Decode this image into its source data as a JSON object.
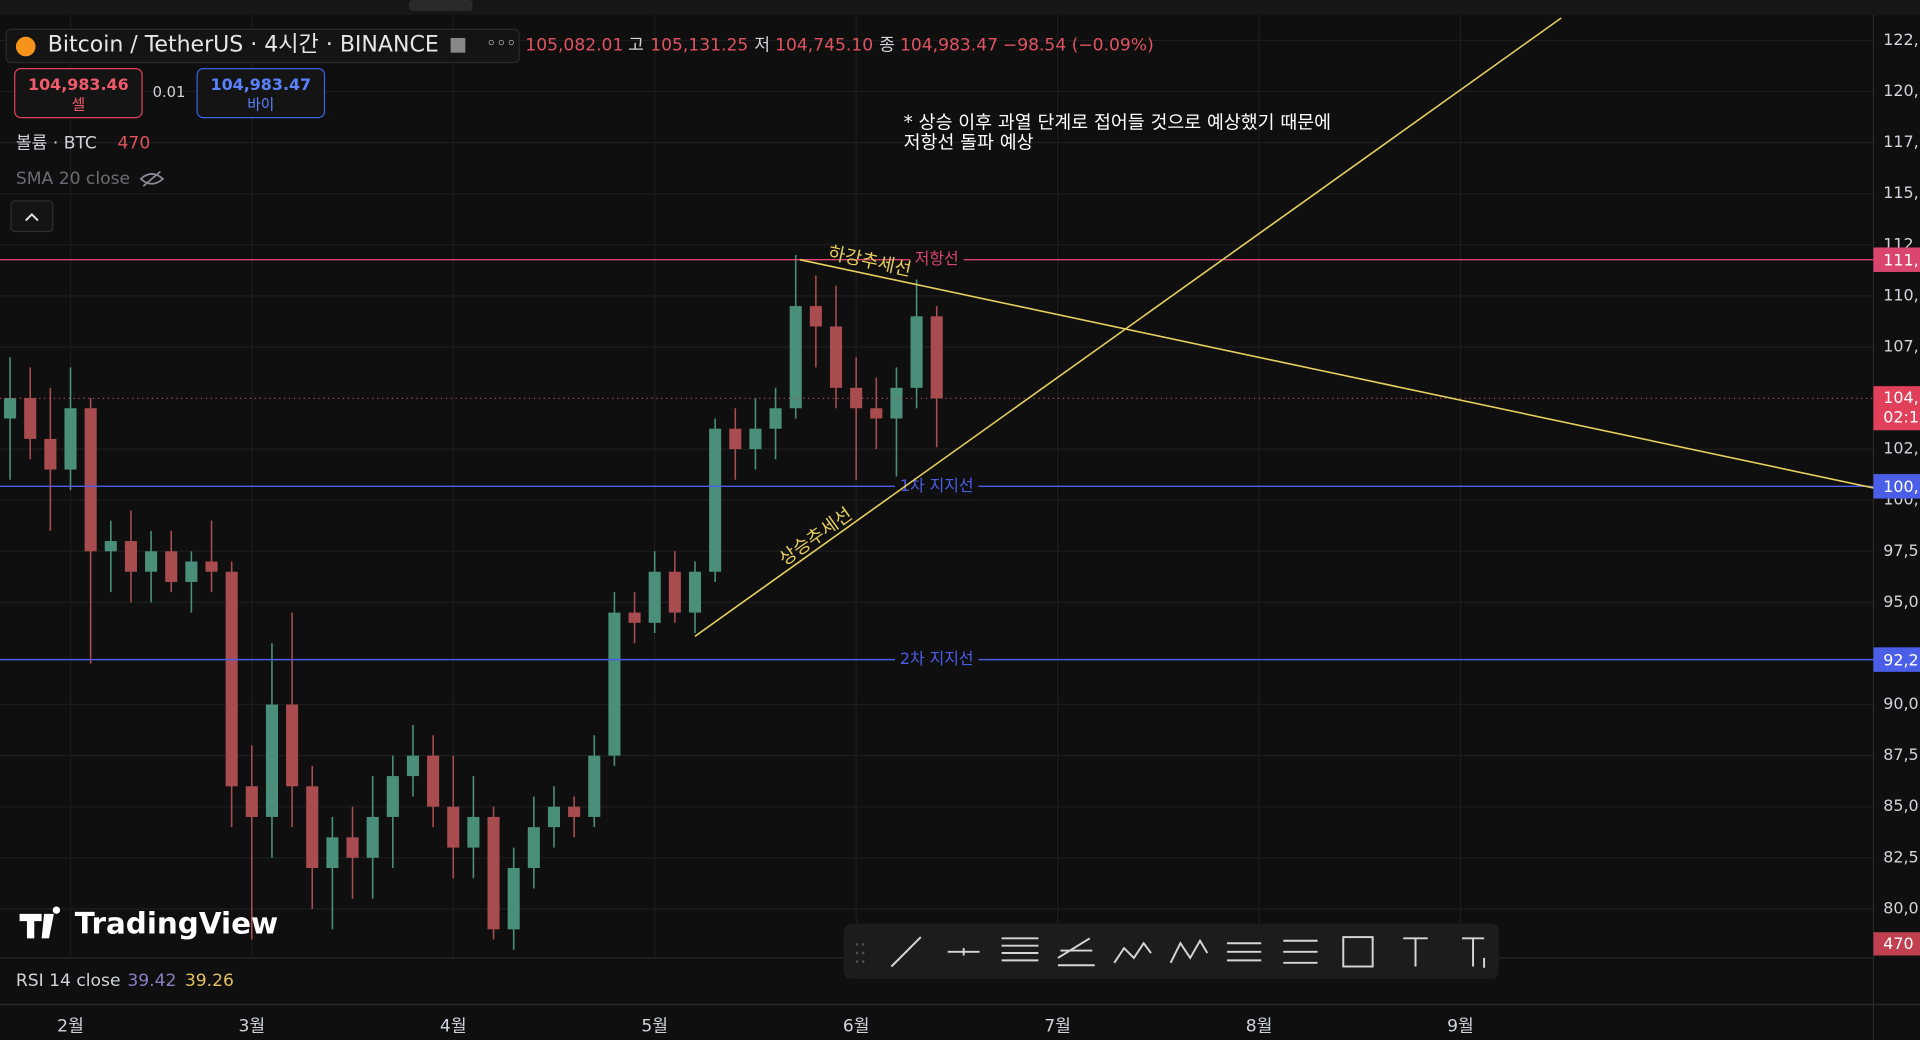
{
  "header": {
    "symbol": "Bitcoin / TetherUS · 4시간 · BINANCE",
    "open": "105,082.01",
    "high_label": "고",
    "high": "105,131.25",
    "low_label": "저",
    "low": "104,745.10",
    "close_label": "종",
    "close": "104,983.47",
    "change": "−98.54 (−0.09%)",
    "sell_price": "104,983.46",
    "sell_label": "셀",
    "spread": "0.01",
    "buy_price": "104,983.47",
    "buy_label": "바이"
  },
  "legend": {
    "volume_label": "볼륨 · BTC",
    "volume_value": "470",
    "sma_label": "SMA 20 close",
    "rsi_label": "RSI 14 close",
    "rsi_values": [
      "39.42",
      "39.26"
    ]
  },
  "logo": "TradingView",
  "chart_data": {
    "type": "candlestick",
    "categories": [
      null,
      null,
      null,
      "2월",
      null,
      null,
      null,
      null,
      null,
      null,
      null,
      null,
      "3월",
      null,
      null,
      null,
      null,
      null,
      null,
      null,
      null,
      null,
      "4월",
      null,
      null,
      null,
      null,
      null,
      null,
      null,
      null,
      null,
      "5월",
      null,
      null,
      null,
      null,
      null,
      null,
      null,
      null,
      null,
      "6월",
      null,
      null,
      null,
      null,
      null,
      null,
      null,
      null,
      null,
      "7월",
      null,
      null,
      null,
      null,
      null,
      null,
      null,
      null,
      null,
      "8월",
      null,
      null,
      null,
      null,
      null,
      null,
      null,
      null,
      null,
      "9월",
      null,
      null,
      null,
      null,
      null,
      null,
      null,
      null,
      null,
      null,
      null,
      null,
      null,
      null,
      null,
      null,
      null,
      null,
      null,
      null
    ],
    "open": [
      104000,
      105000,
      103000,
      101500,
      104500,
      97500,
      98000,
      96500,
      97500,
      96000,
      97000,
      96500,
      86000,
      84500,
      90000,
      86000,
      82000,
      83500,
      82500,
      84500,
      86500,
      87500,
      85000,
      83000,
      84500,
      79000,
      82000,
      84000,
      85000,
      84500,
      87500,
      94500,
      94000,
      96500,
      94500,
      96500,
      103500,
      102500,
      103500,
      104500,
      109500,
      108500,
      105500,
      104500,
      104000,
      105500,
      109000,
      null,
      null,
      null,
      null,
      null,
      null,
      null,
      null,
      null,
      null,
      null,
      null,
      null,
      null,
      null,
      null,
      null,
      null,
      null,
      null,
      null,
      null,
      null,
      null,
      null,
      null,
      null,
      null,
      null,
      null,
      null,
      null,
      null,
      null,
      null,
      null,
      null,
      null,
      null,
      null,
      null,
      null,
      null,
      null,
      null,
      null
    ],
    "high": [
      107000,
      106500,
      105500,
      106500,
      105000,
      99000,
      99500,
      98500,
      98500,
      97500,
      99000,
      97000,
      88000,
      93000,
      94500,
      87000,
      84500,
      85000,
      86500,
      87500,
      89000,
      88500,
      87500,
      86500,
      85000,
      83000,
      85500,
      86000,
      85500,
      88500,
      95500,
      95500,
      97500,
      97500,
      97000,
      104000,
      104500,
      105000,
      105500,
      112000,
      111000,
      110500,
      107000,
      106000,
      106500,
      110800,
      109500,
      null,
      null,
      null,
      null,
      null,
      null,
      null,
      null,
      null,
      null,
      null,
      null,
      null,
      null,
      null,
      null,
      null,
      null,
      null,
      null,
      null,
      null,
      null,
      null,
      null,
      null,
      null,
      null,
      null,
      null,
      null,
      null,
      null,
      null,
      null,
      null,
      null,
      null,
      null,
      null,
      null,
      null,
      null,
      null,
      null,
      null
    ],
    "low": [
      101000,
      102000,
      98500,
      100500,
      92000,
      95500,
      95000,
      95000,
      95500,
      94500,
      95500,
      84000,
      78500,
      82500,
      84000,
      80000,
      79000,
      80500,
      80500,
      82000,
      85500,
      84000,
      81500,
      81500,
      78500,
      78000,
      81000,
      83000,
      83500,
      84000,
      87000,
      93000,
      93500,
      94000,
      93500,
      96000,
      101000,
      101500,
      102000,
      104000,
      106500,
      104500,
      101000,
      102500,
      100300,
      104500,
      102600,
      null,
      null,
      null,
      null,
      null,
      null,
      null,
      null,
      null,
      null,
      null,
      null,
      null,
      null,
      null,
      null,
      null,
      null,
      null,
      null,
      null,
      null,
      null,
      null,
      null,
      null,
      null,
      null,
      null,
      null,
      null,
      null,
      null,
      null,
      null,
      null,
      null,
      null,
      null,
      null,
      null,
      null,
      null,
      null,
      null,
      null
    ],
    "close": [
      105000,
      103000,
      101500,
      104500,
      97500,
      98000,
      96500,
      97500,
      96000,
      97000,
      96500,
      86000,
      84500,
      90000,
      86000,
      82000,
      83500,
      82500,
      84500,
      86500,
      87500,
      85000,
      83000,
      84500,
      79000,
      82000,
      84000,
      85000,
      84500,
      87500,
      94500,
      94000,
      96500,
      94500,
      96500,
      103500,
      102500,
      103500,
      104500,
      109500,
      108500,
      105500,
      104500,
      104000,
      105500,
      109000,
      104983.47,
      null,
      null,
      null,
      null,
      null,
      null,
      null,
      null,
      null,
      null,
      null,
      null,
      null,
      null,
      null,
      null,
      null,
      null,
      null,
      null,
      null,
      null,
      null,
      null,
      null,
      null,
      null,
      null,
      null,
      null,
      null,
      null,
      null,
      null,
      null,
      null,
      null,
      null,
      null,
      null,
      null,
      null,
      null,
      null,
      null,
      null
    ],
    "up_color": "#4a8f7a",
    "down_color": "#a94c4f",
    "ylim": [
      77720,
      123760
    ],
    "yticks": [
      {
        "value": 122500,
        "label": "122,"
      },
      {
        "value": 120000,
        "label": "120,"
      },
      {
        "value": 117500,
        "label": "117,"
      },
      {
        "value": 115000,
        "label": "115,"
      },
      {
        "value": 112500,
        "label": "112,"
      },
      {
        "value": 110000,
        "label": "110,"
      },
      {
        "value": 107500,
        "label": "107,"
      },
      {
        "value": 102500,
        "label": "102,"
      },
      {
        "value": 100000,
        "label": "100,"
      },
      {
        "value": 97500,
        "label": "97,5"
      },
      {
        "value": 95000,
        "label": "95,0"
      },
      {
        "value": 90000,
        "label": "90,0"
      },
      {
        "value": 87500,
        "label": "87,5"
      },
      {
        "value": 85000,
        "label": "85,0"
      },
      {
        "value": 82500,
        "label": "82,5"
      },
      {
        "value": 80000,
        "label": "80,0"
      }
    ],
    "grid": true,
    "hlines": [
      {
        "label": "저항선",
        "value": 111770,
        "color": "#d9456e",
        "axis_label": "111,"
      },
      {
        "label": "1차 지지선",
        "value": 100680,
        "color": "#4b5ee8",
        "axis_label": "100,"
      },
      {
        "label": "2차 지지선",
        "value": 92200,
        "color": "#4b5ee8",
        "axis_label": "92,2"
      }
    ],
    "trendlines": [
      {
        "label": "하강추세선",
        "color": "#e6cf5f",
        "x": [
          39.2,
          92.5
        ],
        "values": [
          111770,
          100600
        ]
      },
      {
        "label": "상승추세선",
        "color": "#e6cf5f",
        "x": [
          34,
          77
        ],
        "values": [
          93340,
          123600
        ]
      }
    ],
    "last_price_label": "104,",
    "countdown": "02:1",
    "annotation": [
      "* 상승 이후 과열 단계로 접어들 것으로 예상했기 때문에",
      "저항선 돌파 예상"
    ]
  }
}
